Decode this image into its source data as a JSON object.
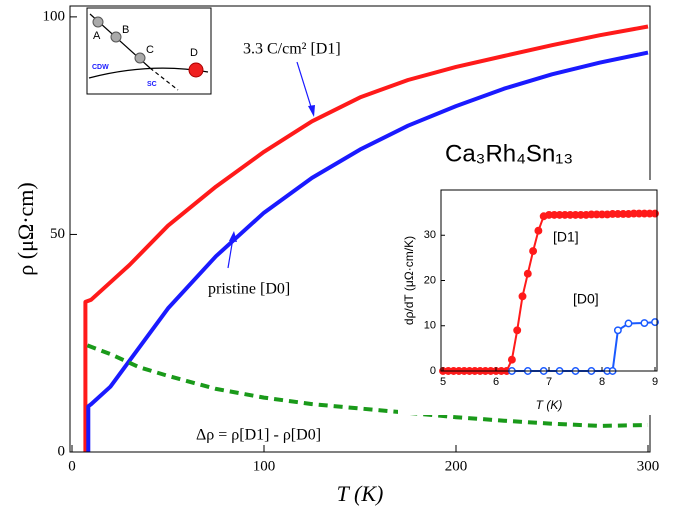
{
  "chart_data": [
    {
      "type": "line",
      "xlabel": "T (K)",
      "ylabel": "ρ (μΩ·cm)",
      "annotation": "Ca₃Rh₄Sn₁₃",
      "xlim": [
        0,
        300
      ],
      "ylim": [
        0,
        102.5
      ],
      "xticks": [
        0,
        100,
        200,
        300
      ],
      "yticks": [
        0,
        50,
        100
      ],
      "series": [
        {
          "name": "3.3 C/cm² [D1]",
          "color": "#ff1a1a",
          "dash": false,
          "x": [
            7,
            7,
            10,
            20,
            30,
            50,
            75,
            100,
            125,
            150,
            175,
            200,
            225,
            250,
            275,
            300
          ],
          "values": [
            0,
            34.5,
            35,
            39,
            43,
            52,
            61,
            69,
            76,
            81.5,
            85.5,
            88.5,
            91,
            93.5,
            95.8,
            97.8
          ]
        },
        {
          "name": "pristine [D0]",
          "color": "#1a1aff",
          "dash": false,
          "x": [
            8.5,
            8.5,
            10,
            20,
            30,
            50,
            75,
            100,
            125,
            150,
            175,
            200,
            225,
            250,
            275,
            300
          ],
          "values": [
            0,
            10.5,
            11,
            15,
            21,
            33,
            45,
            55,
            63,
            69.5,
            75,
            79.5,
            83.5,
            86.8,
            89.5,
            91.8
          ]
        },
        {
          "name": "Δρ = ρ[D1] - ρ[D0]",
          "color": "#1a9a1a",
          "dash": true,
          "x": [
            8,
            20,
            35,
            50,
            75,
            100,
            125,
            150,
            175,
            200,
            225,
            250,
            275,
            300
          ],
          "values": [
            24.5,
            22.5,
            19.5,
            17.5,
            14.5,
            12.5,
            11,
            10,
            9,
            8,
            7.2,
            6.5,
            6,
            6.2
          ]
        }
      ]
    },
    {
      "type": "line",
      "xlabel": "T (K)",
      "ylabel": "dρ/dT (μΩ·cm/K)",
      "xlim": [
        5,
        9
      ],
      "ylim": [
        0,
        40
      ],
      "xticks": [
        5,
        6,
        7,
        8,
        9
      ],
      "yticks": [
        0,
        10,
        20,
        30
      ],
      "series": [
        {
          "name": "[D1]",
          "color": "#ff1a1a",
          "marker": "filled",
          "x": [
            5.0,
            5.1,
            5.2,
            5.3,
            5.4,
            5.5,
            5.6,
            5.7,
            5.8,
            5.9,
            6.0,
            6.1,
            6.2,
            6.3,
            6.4,
            6.5,
            6.6,
            6.7,
            6.8,
            6.9,
            7.0,
            7.1,
            7.2,
            7.3,
            7.4,
            7.5,
            7.6,
            7.7,
            7.8,
            7.9,
            8.0,
            8.1,
            8.2,
            8.3,
            8.4,
            8.5,
            8.6,
            8.7,
            8.8,
            8.9,
            9.0
          ],
          "values": [
            0,
            0,
            0,
            0,
            0,
            0,
            0,
            0,
            0,
            0,
            0,
            0,
            0,
            2.5,
            9,
            16.5,
            21.5,
            26.5,
            31,
            34.2,
            34.5,
            34.5,
            34.5,
            34.5,
            34.5,
            34.5,
            34.5,
            34.5,
            34.6,
            34.6,
            34.6,
            34.6,
            34.7,
            34.7,
            34.7,
            34.7,
            34.8,
            34.8,
            34.8,
            34.8,
            34.8
          ]
        },
        {
          "name": "[D0]",
          "color": "#1a5aff",
          "marker": "open",
          "x": [
            6.3,
            6.6,
            6.9,
            7.2,
            7.5,
            7.8,
            8.1,
            8.2,
            8.3,
            8.5,
            8.8,
            9.0
          ],
          "values": [
            0,
            0,
            0,
            0,
            0,
            0,
            0,
            0,
            9,
            10.5,
            10.6,
            10.8
          ]
        }
      ]
    }
  ],
  "schematic": {
    "labels": [
      "A",
      "B",
      "C",
      "D",
      "CDW",
      "SC"
    ]
  }
}
